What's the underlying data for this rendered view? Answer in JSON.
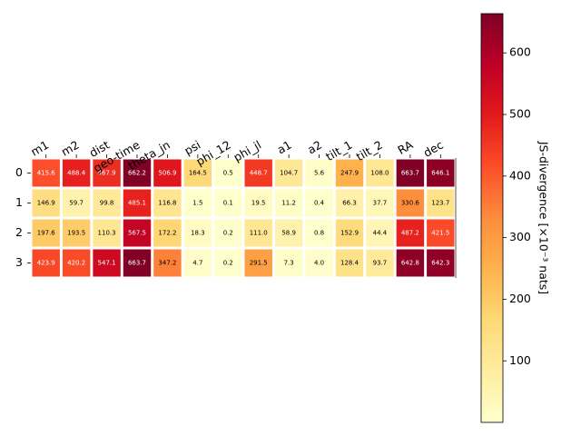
{
  "chart_data": {
    "type": "heatmap",
    "colormap": "YlOrRd",
    "columns": [
      "m1",
      "m2",
      "dist",
      "geo-time",
      "theta_jn",
      "psi",
      "phi_12",
      "phi_jl",
      "a1",
      "a2",
      "tilt_1",
      "tilt_2",
      "RA",
      "dec"
    ],
    "rows": [
      "0",
      "1",
      "2",
      "3"
    ],
    "values": [
      [
        415.6,
        488.4,
        467.9,
        662.2,
        506.9,
        164.5,
        0.5,
        448.7,
        104.7,
        5.6,
        247.9,
        108.0,
        663.7,
        646.1
      ],
      [
        146.9,
        59.7,
        99.8,
        485.1,
        116.8,
        1.5,
        0.1,
        19.5,
        11.2,
        0.4,
        66.3,
        37.7,
        330.6,
        123.7
      ],
      [
        197.6,
        193.5,
        110.3,
        567.5,
        172.2,
        18.3,
        0.2,
        111.0,
        58.9,
        0.8,
        152.9,
        44.4,
        487.2,
        421.5
      ],
      [
        423.9,
        420.2,
        547.1,
        663.7,
        347.2,
        4.7,
        0.2,
        291.5,
        7.3,
        4.0,
        128.4,
        93.7,
        642.8,
        642.3
      ]
    ],
    "colorbar": {
      "label": "JS-divergence [×10⁻³ nats]",
      "ticks": [
        100,
        200,
        300,
        400,
        500,
        600
      ],
      "range": [
        0.1,
        663.7
      ]
    }
  }
}
